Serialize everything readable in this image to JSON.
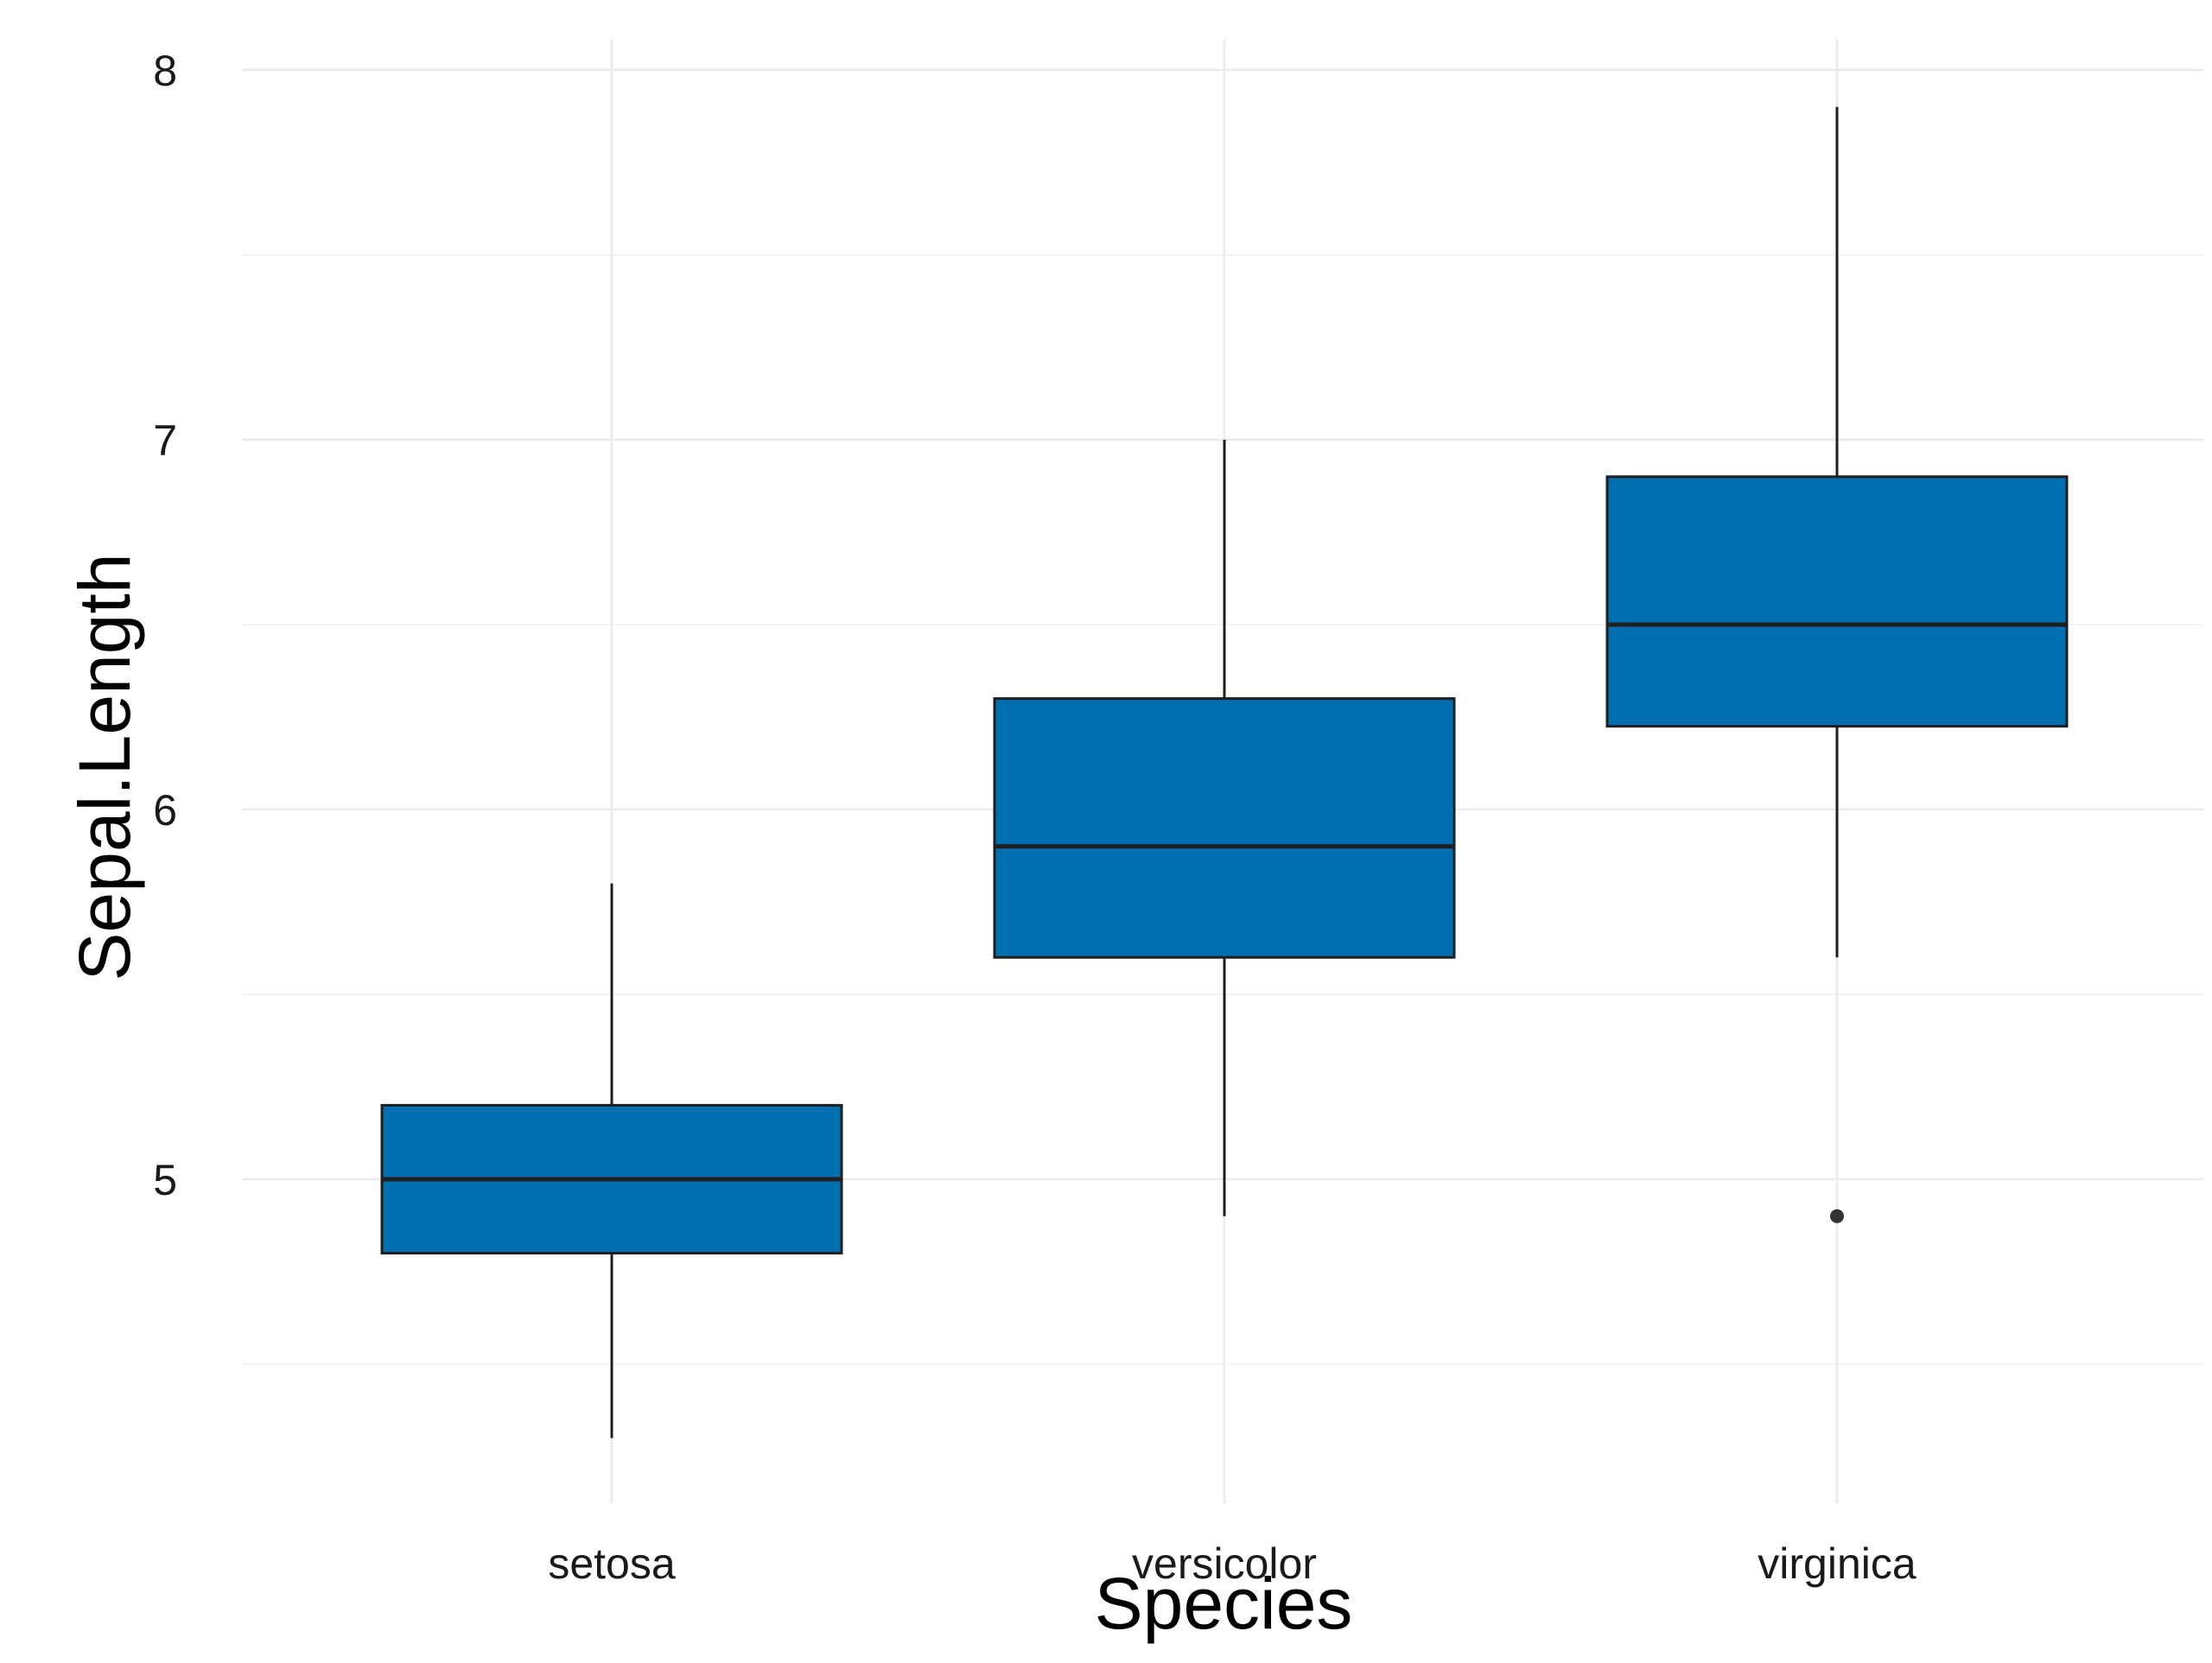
{
  "chart_data": {
    "type": "boxplot",
    "title": "",
    "xlabel": "Species",
    "ylabel": "Sepal.Length",
    "categories": [
      "setosa",
      "versicolor",
      "virginica"
    ],
    "series": [
      {
        "values": [
          {
            "category": "setosa",
            "whisker_low": 4.3,
            "q1": 4.8,
            "median": 5.0,
            "q3": 5.2,
            "whisker_high": 5.8,
            "outliers": []
          },
          {
            "category": "versicolor",
            "whisker_low": 4.9,
            "q1": 5.6,
            "median": 5.9,
            "q3": 6.3,
            "whisker_high": 7.0,
            "outliers": []
          },
          {
            "category": "virginica",
            "whisker_low": 5.6,
            "q1": 6.225,
            "median": 6.5,
            "q3": 6.9,
            "whisker_high": 7.9,
            "outliers": [
              4.9
            ]
          }
        ]
      }
    ],
    "yticks": [
      5,
      6,
      7,
      8
    ],
    "ylim": [
      4.2,
      8.08
    ],
    "grid": true,
    "legend": "none",
    "colors": {
      "box_fill": "#006FAF",
      "box_stroke": "#1f1f1f",
      "median_line": "#1f1f1f",
      "whisker": "#1f1f1f",
      "outlier": "#333333",
      "grid_major": "#ebebeb",
      "grid_minor": "#f4f4f4",
      "background": "#ffffff"
    }
  }
}
